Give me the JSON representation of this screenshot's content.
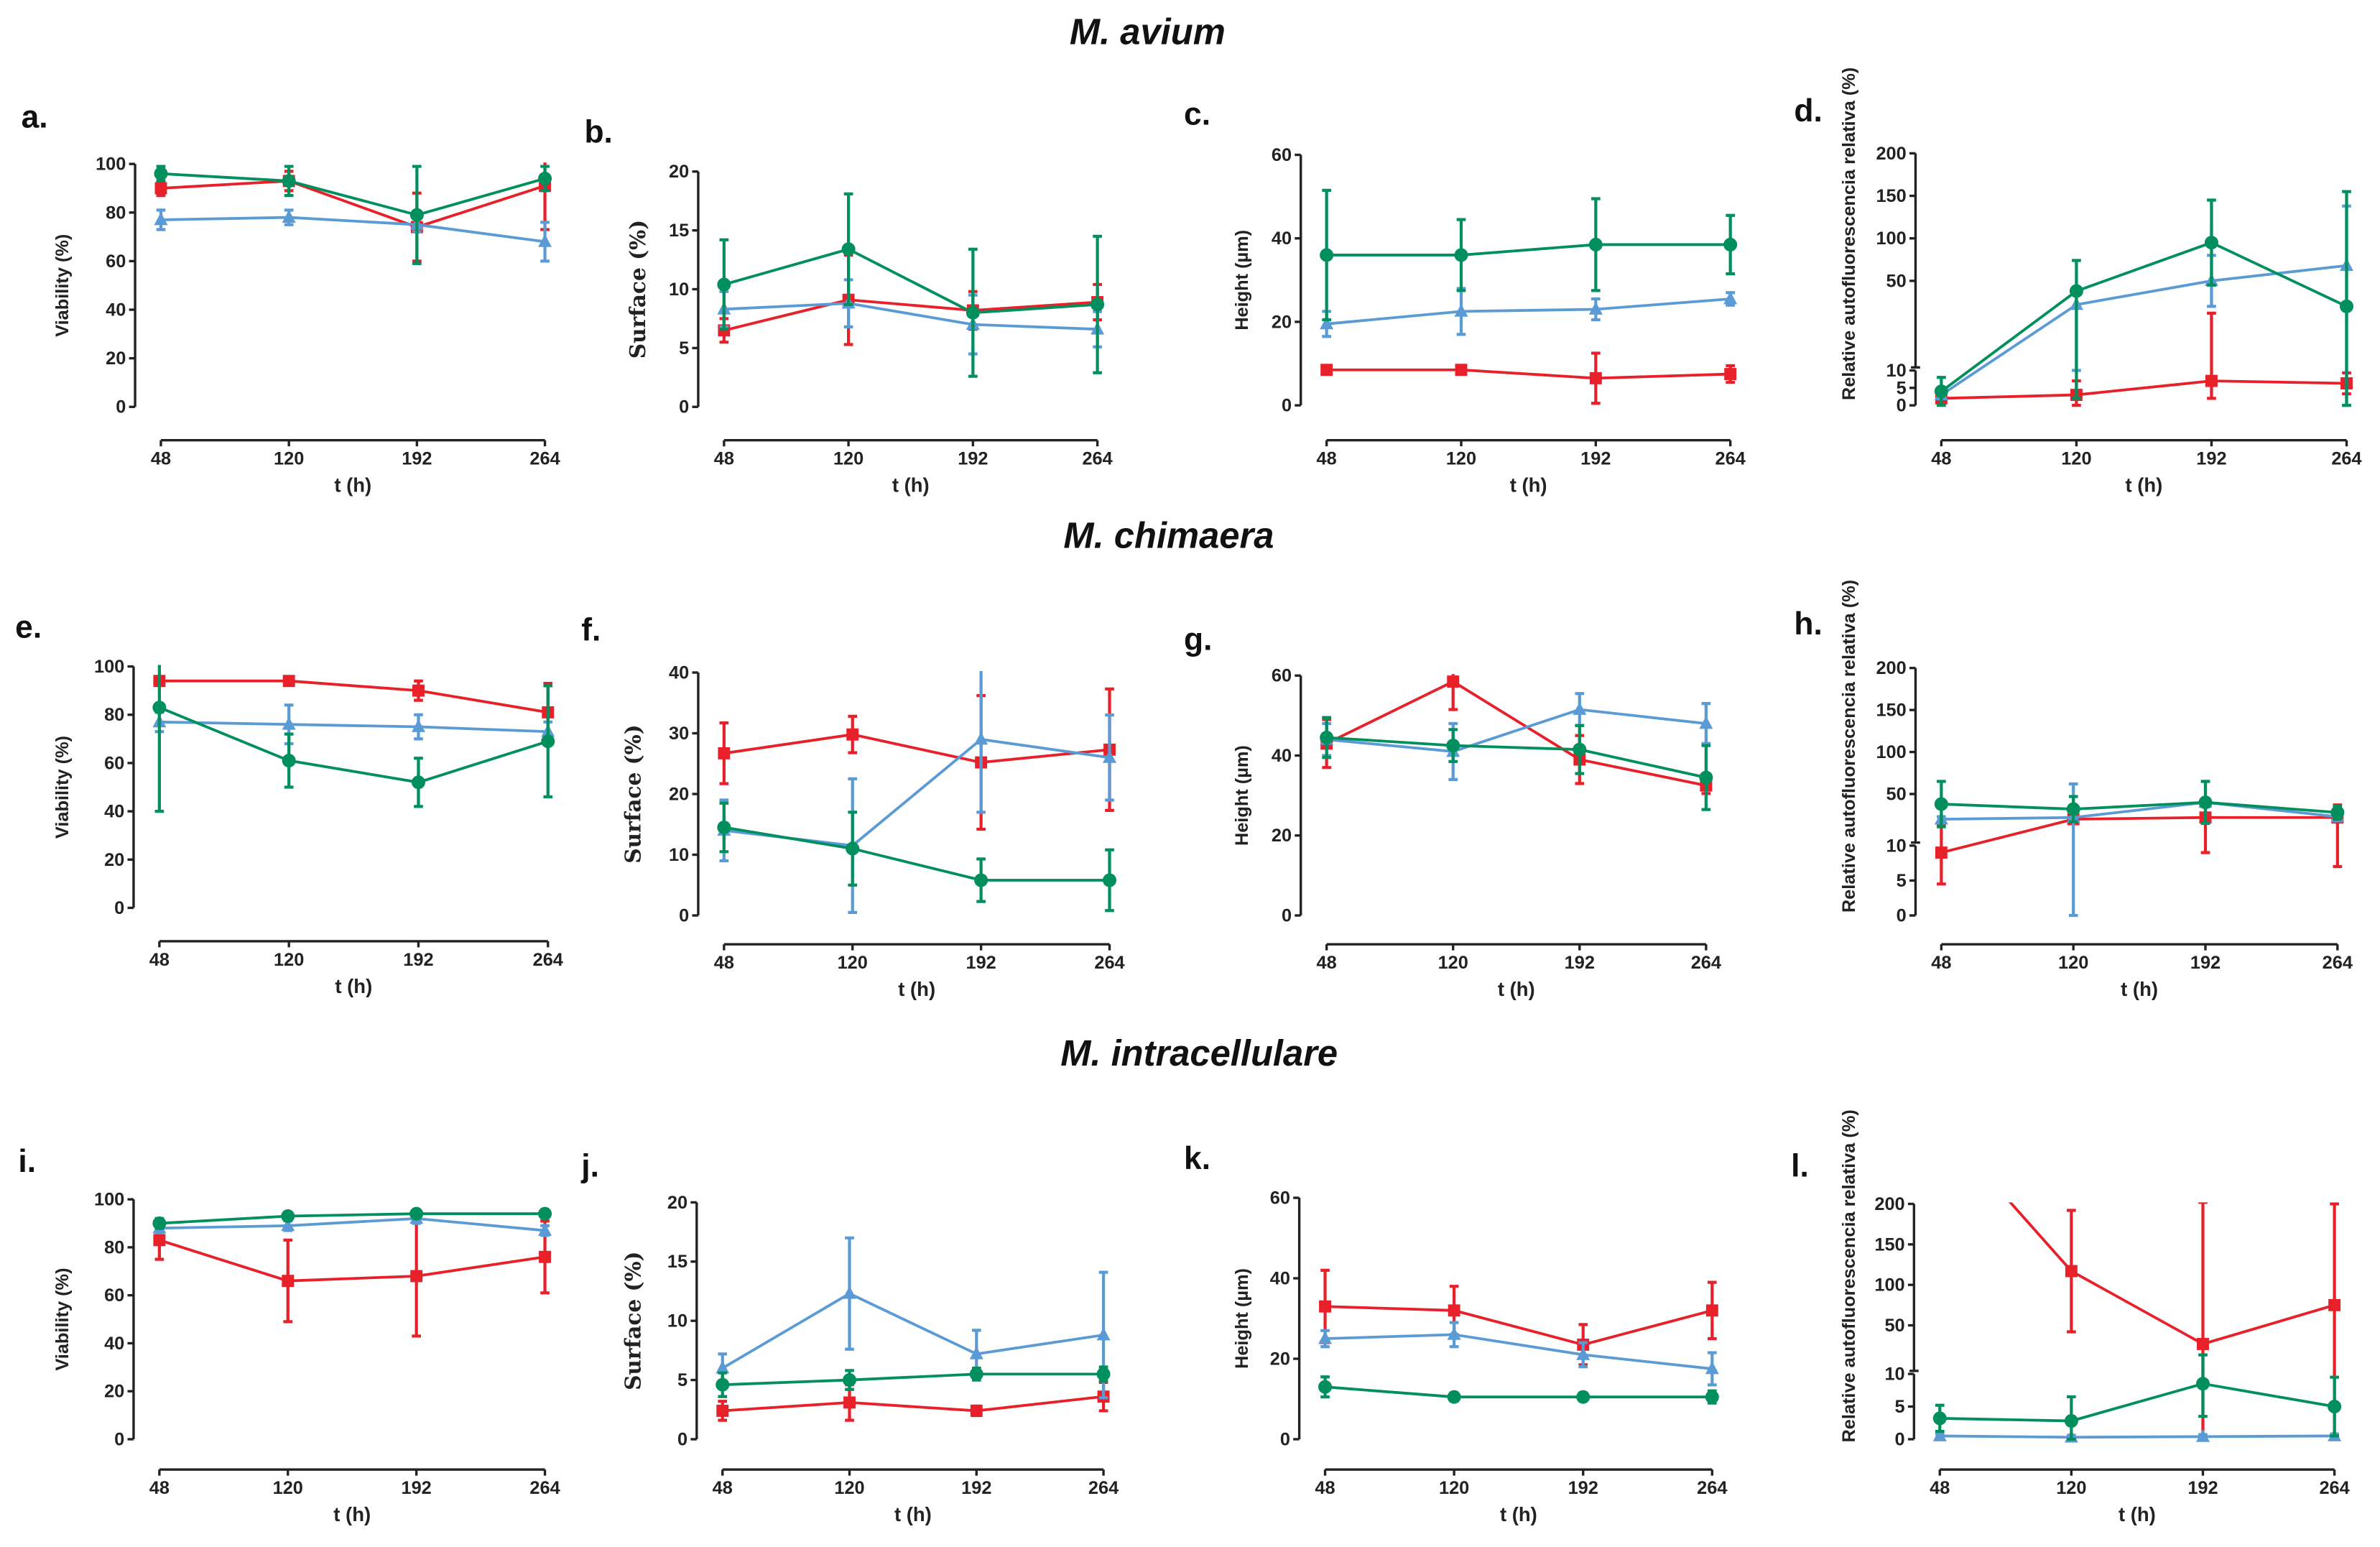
{
  "colors": {
    "red": "#e8202a",
    "blue": "#5b9bd5",
    "green": "#008f5d"
  },
  "titles": [
    "M. avium",
    "M. chimaera",
    "M. intracellulare"
  ],
  "chart_data": [
    {
      "panel": "a.",
      "type": "line",
      "xlabel": "t (h)",
      "ylabel": "Viability (%)",
      "x": [
        48,
        120,
        192,
        264
      ],
      "ylim": [
        0,
        100
      ],
      "yticks": [
        0,
        20,
        40,
        60,
        80,
        100
      ],
      "series": [
        {
          "color": "red",
          "marker": "square",
          "values": [
            90,
            93,
            74,
            91
          ],
          "errors": [
            3,
            4,
            14,
            18
          ]
        },
        {
          "color": "blue",
          "marker": "triangle",
          "values": [
            77,
            78,
            75,
            68
          ],
          "errors": [
            4,
            3,
            3,
            8
          ]
        },
        {
          "color": "green",
          "marker": "circle",
          "values": [
            96,
            93,
            79,
            94
          ],
          "errors": [
            3,
            6,
            20,
            5
          ]
        }
      ]
    },
    {
      "panel": "b.",
      "type": "line",
      "xlabel": "t (h)",
      "ylabel": "Surface (%)",
      "x": [
        48,
        120,
        192,
        264
      ],
      "ylim": [
        0,
        20
      ],
      "yticks": [
        0,
        5,
        10,
        15,
        20
      ],
      "series": [
        {
          "color": "red",
          "marker": "square",
          "values": [
            6.5,
            9.1,
            8.2,
            8.9
          ],
          "errors": [
            1,
            3.8,
            1.6,
            1.5
          ]
        },
        {
          "color": "blue",
          "marker": "triangle",
          "values": [
            8.3,
            8.8,
            7.0,
            6.6
          ],
          "errors": [
            1.5,
            2,
            2.5,
            1.5
          ]
        },
        {
          "color": "green",
          "marker": "circle",
          "values": [
            10.4,
            13.4,
            8.0,
            8.7
          ],
          "errors": [
            3.8,
            4.7,
            5.4,
            5.8
          ]
        }
      ]
    },
    {
      "panel": "c.",
      "type": "line",
      "xlabel": "t (h)",
      "ylabel": "Height (µm)",
      "x": [
        48,
        120,
        192,
        264
      ],
      "ylim": [
        0,
        60
      ],
      "yticks": [
        0,
        20,
        40,
        60
      ],
      "series": [
        {
          "color": "red",
          "marker": "square",
          "values": [
            8.5,
            8.5,
            6.5,
            7.5
          ],
          "errors": [
            1,
            1,
            6,
            2
          ]
        },
        {
          "color": "blue",
          "marker": "triangle",
          "values": [
            19.5,
            22.5,
            23,
            25.5
          ],
          "errors": [
            3,
            5.5,
            2.5,
            1.5
          ]
        },
        {
          "color": "green",
          "marker": "circle",
          "values": [
            36,
            36,
            38.5,
            38.5
          ],
          "errors": [
            15.5,
            8.5,
            11,
            7
          ]
        }
      ]
    },
    {
      "panel": "d.",
      "type": "line",
      "broken_axis": true,
      "xlabel": "t (h)",
      "ylabel": "Relative autofluorescencia relativa (%)",
      "x": [
        48,
        120,
        192,
        264
      ],
      "ylim": [
        0,
        200
      ],
      "yticks_lower": [
        0,
        5,
        10
      ],
      "yticks_upper": [
        50,
        100,
        150,
        200
      ],
      "series": [
        {
          "color": "red",
          "marker": "square",
          "values": [
            2,
            3,
            7,
            6.3
          ],
          "errors": [
            1,
            4,
            5,
            3
          ]
        },
        {
          "color": "blue",
          "marker": "triangle",
          "values": [
            3,
            22,
            50,
            68
          ],
          "errors": [
            1,
            12,
            30,
            70
          ]
        },
        {
          "color": "green",
          "marker": "circle",
          "values": [
            4,
            38,
            95,
            20
          ],
          "errors": [
            4,
            36,
            50,
            135
          ]
        }
      ]
    },
    {
      "panel": "e.",
      "type": "line",
      "xlabel": "t (h)",
      "ylabel": "Viability (%)",
      "x": [
        48,
        120,
        192,
        264
      ],
      "ylim": [
        0,
        100
      ],
      "yticks": [
        0,
        20,
        40,
        60,
        80,
        100
      ],
      "series": [
        {
          "color": "red",
          "marker": "square",
          "values": [
            94,
            94,
            90,
            81
          ],
          "errors": [
            1,
            1,
            4,
            12
          ]
        },
        {
          "color": "blue",
          "marker": "triangle",
          "values": [
            77,
            76,
            75,
            73
          ],
          "errors": [
            4,
            8,
            5,
            4
          ]
        },
        {
          "color": "green",
          "marker": "circle",
          "values": [
            83,
            61,
            52,
            69
          ],
          "errors": [
            43,
            11,
            10,
            23
          ]
        }
      ]
    },
    {
      "panel": "f.",
      "type": "line",
      "xlabel": "t (h)",
      "ylabel": "Surface (%)",
      "x": [
        48,
        120,
        192,
        264
      ],
      "ylim": [
        0,
        40
      ],
      "yticks": [
        0,
        10,
        20,
        30,
        40
      ],
      "series": [
        {
          "color": "red",
          "marker": "square",
          "values": [
            26.7,
            29.8,
            25.2,
            27.3
          ],
          "errors": [
            5,
            3,
            11,
            10
          ]
        },
        {
          "color": "blue",
          "marker": "triangle",
          "values": [
            14,
            11.5,
            29,
            26
          ],
          "errors": [
            5,
            11,
            12,
            7
          ]
        },
        {
          "color": "green",
          "marker": "circle",
          "values": [
            14.5,
            11,
            5.8,
            5.8
          ],
          "errors": [
            4,
            6,
            3.5,
            5
          ]
        }
      ]
    },
    {
      "panel": "g.",
      "type": "line",
      "xlabel": "t (h)",
      "ylabel": "Height (µm)",
      "x": [
        48,
        120,
        192,
        264
      ],
      "ylim": [
        0,
        60
      ],
      "yticks": [
        0,
        20,
        40,
        60
      ],
      "series": [
        {
          "color": "red",
          "marker": "square",
          "values": [
            43,
            58.5,
            39,
            32.5
          ],
          "errors": [
            6,
            7,
            6,
            2
          ]
        },
        {
          "color": "blue",
          "marker": "triangle",
          "values": [
            44,
            41,
            51.5,
            48
          ],
          "errors": [
            4,
            7,
            4,
            5
          ]
        },
        {
          "color": "green",
          "marker": "circle",
          "values": [
            44.5,
            42.5,
            41.5,
            34.5
          ],
          "errors": [
            5,
            4,
            6,
            8
          ]
        }
      ]
    },
    {
      "panel": "h.",
      "type": "line",
      "broken_axis": true,
      "xlabel": "t (h)",
      "ylabel": "Relative autofluorescencia relativa (%)",
      "x": [
        48,
        120,
        192,
        264
      ],
      "ylim": [
        0,
        200
      ],
      "yticks_lower": [
        0,
        5,
        10
      ],
      "yticks_upper": [
        50,
        100,
        150,
        200
      ],
      "series": [
        {
          "color": "red",
          "marker": "square",
          "values": [
            9,
            20,
            22,
            22
          ],
          "errors": [
            4.5,
            3,
            13,
            15
          ]
        },
        {
          "color": "blue",
          "marker": "triangle",
          "values": [
            20,
            22,
            40,
            23
          ],
          "errors": [
            3,
            40,
            25,
            5
          ]
        },
        {
          "color": "green",
          "marker": "circle",
          "values": [
            38,
            32,
            40,
            28
          ],
          "errors": [
            27,
            15,
            25,
            8
          ]
        }
      ]
    },
    {
      "panel": "i.",
      "type": "line",
      "xlabel": "t (h)",
      "ylabel": "Viability (%)",
      "x": [
        48,
        120,
        192,
        264
      ],
      "ylim": [
        0,
        100
      ],
      "yticks": [
        0,
        20,
        40,
        60,
        80,
        100
      ],
      "series": [
        {
          "color": "red",
          "marker": "square",
          "values": [
            83,
            66,
            68,
            76
          ],
          "errors": [
            8,
            17,
            25,
            15
          ]
        },
        {
          "color": "blue",
          "marker": "triangle",
          "values": [
            88,
            89,
            92,
            87
          ],
          "errors": [
            2,
            2,
            2,
            2
          ]
        },
        {
          "color": "green",
          "marker": "circle",
          "values": [
            90,
            93,
            94,
            94
          ],
          "errors": [
            2,
            1,
            1,
            1
          ]
        }
      ]
    },
    {
      "panel": "j.",
      "type": "line",
      "xlabel": "t (h)",
      "ylabel": "Surface (%)",
      "x": [
        48,
        120,
        192,
        264
      ],
      "ylim": [
        0,
        20
      ],
      "yticks": [
        0,
        5,
        10,
        15,
        20
      ],
      "series": [
        {
          "color": "red",
          "marker": "square",
          "values": [
            2.4,
            3.1,
            2.4,
            3.6
          ],
          "errors": [
            0.8,
            1.5,
            0.4,
            1.2
          ]
        },
        {
          "color": "blue",
          "marker": "triangle",
          "values": [
            6,
            12.3,
            7.2,
            8.8
          ],
          "errors": [
            1.2,
            4.7,
            2,
            5.3
          ]
        },
        {
          "color": "green",
          "marker": "circle",
          "values": [
            4.6,
            5,
            5.5,
            5.5
          ],
          "errors": [
            1,
            0.8,
            0.5,
            0.6
          ]
        }
      ]
    },
    {
      "panel": "k.",
      "type": "line",
      "xlabel": "t (h)",
      "ylabel": "Height (µm)",
      "x": [
        48,
        120,
        192,
        264
      ],
      "ylim": [
        0,
        60
      ],
      "yticks": [
        0,
        20,
        40,
        60
      ],
      "series": [
        {
          "color": "red",
          "marker": "square",
          "values": [
            33,
            32,
            23.5,
            32
          ],
          "errors": [
            9,
            6,
            5,
            7
          ]
        },
        {
          "color": "blue",
          "marker": "triangle",
          "values": [
            25,
            26,
            21,
            17.5
          ],
          "errors": [
            2,
            3,
            3,
            4
          ]
        },
        {
          "color": "green",
          "marker": "circle",
          "values": [
            13,
            10.5,
            10.5,
            10.5
          ],
          "errors": [
            2.5,
            1,
            1,
            1.5
          ]
        }
      ]
    },
    {
      "panel": "l.",
      "type": "line",
      "broken_axis": true,
      "xlabel": "t (h)",
      "ylabel": "Relative autofluorescencia relativa (%)",
      "x": [
        48,
        120,
        192,
        264
      ],
      "ylim": [
        0,
        200
      ],
      "yticks_lower": [
        0,
        5,
        10
      ],
      "yticks_upper": [
        50,
        100,
        150,
        200
      ],
      "series": [
        {
          "color": "red",
          "marker": "square",
          "values": [
            300,
            117,
            27,
            75
          ],
          "errors": [
            0,
            75,
            175,
            125
          ]
        },
        {
          "color": "blue",
          "marker": "triangle",
          "values": [
            0.5,
            0.3,
            0.4,
            0.5
          ],
          "errors": [
            0.3,
            0.3,
            0.3,
            0.3
          ]
        },
        {
          "color": "green",
          "marker": "circle",
          "values": [
            3.2,
            2.8,
            8.5,
            5
          ],
          "errors": [
            2,
            3.7,
            5,
            4.5
          ]
        }
      ]
    }
  ]
}
